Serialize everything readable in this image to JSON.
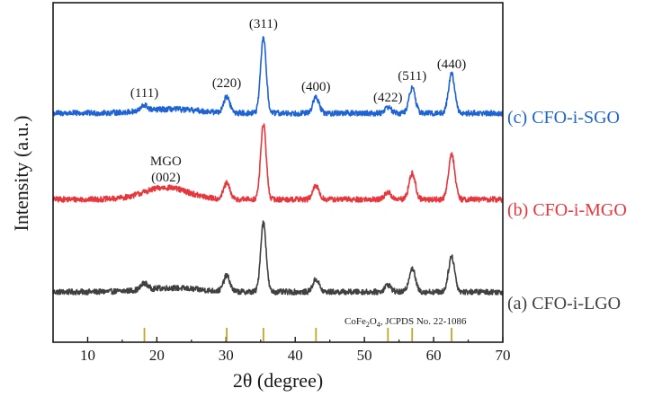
{
  "chart_data": {
    "type": "line",
    "xlabel": "2θ (degree)",
    "ylabel": "Intensity (a.u.)",
    "xlim": [
      5,
      70
    ],
    "x_ticks": [
      10,
      20,
      30,
      40,
      50,
      60,
      70
    ],
    "series": [
      {
        "name": "(a) CFO-i-LGO",
        "color": "#404040",
        "baseline": 0.0,
        "noise": 0.035,
        "peaks": [
          {
            "x": 18.2,
            "h": 0.08,
            "w": 0.45
          },
          {
            "x": 22.0,
            "h": 0.05,
            "w": 4.0
          },
          {
            "x": 30.1,
            "h": 0.2,
            "w": 0.45
          },
          {
            "x": 35.4,
            "h": 0.88,
            "w": 0.4
          },
          {
            "x": 43.0,
            "h": 0.16,
            "w": 0.45
          },
          {
            "x": 53.4,
            "h": 0.09,
            "w": 0.45
          },
          {
            "x": 56.9,
            "h": 0.3,
            "w": 0.45
          },
          {
            "x": 62.6,
            "h": 0.45,
            "w": 0.45
          }
        ]
      },
      {
        "name": "(b) CFO-i-MGO",
        "color": "#e8363d",
        "baseline": 0.0,
        "noise": 0.035,
        "peaks": [
          {
            "x": 21.3,
            "h": 0.15,
            "w": 3.2
          },
          {
            "x": 30.1,
            "h": 0.2,
            "w": 0.45
          },
          {
            "x": 35.4,
            "h": 0.95,
            "w": 0.4
          },
          {
            "x": 43.0,
            "h": 0.17,
            "w": 0.45
          },
          {
            "x": 53.4,
            "h": 0.09,
            "w": 0.45
          },
          {
            "x": 56.9,
            "h": 0.33,
            "w": 0.45
          },
          {
            "x": 62.6,
            "h": 0.58,
            "w": 0.45
          }
        ]
      },
      {
        "name": "(c) CFO-i-SGO",
        "color": "#1e63d6",
        "baseline": 0.0,
        "noise": 0.035,
        "peaks": [
          {
            "x": 18.2,
            "h": 0.07,
            "w": 0.45
          },
          {
            "x": 22.0,
            "h": 0.05,
            "w": 4.0
          },
          {
            "x": 30.1,
            "h": 0.2,
            "w": 0.45
          },
          {
            "x": 35.4,
            "h": 0.96,
            "w": 0.4
          },
          {
            "x": 43.0,
            "h": 0.2,
            "w": 0.45
          },
          {
            "x": 53.4,
            "h": 0.08,
            "w": 0.45
          },
          {
            "x": 56.9,
            "h": 0.32,
            "w": 0.45
          },
          {
            "x": 62.6,
            "h": 0.5,
            "w": 0.45
          }
        ]
      }
    ],
    "peak_labels": [
      {
        "text": "(111)",
        "x": 18.2
      },
      {
        "text": "(220)",
        "x": 30.1
      },
      {
        "text": "(311)",
        "x": 35.4
      },
      {
        "text": "(400)",
        "x": 43.0
      },
      {
        "text": "(422)",
        "x": 53.4
      },
      {
        "text": "(511)",
        "x": 56.9
      },
      {
        "text": "(440)",
        "x": 62.6
      }
    ],
    "mgo_annotation": {
      "line1": "MGO",
      "line2": "(002)",
      "x": 21.3
    },
    "reference": {
      "label_main": "CoFe",
      "label_sub1": "2",
      "label_mid": "O",
      "label_sub2": "4",
      "label_tail": ", JCPDS No. 22-1086",
      "color": "#c9a227",
      "positions": [
        18.2,
        30.1,
        35.4,
        43.0,
        53.4,
        56.9,
        62.6
      ]
    }
  }
}
